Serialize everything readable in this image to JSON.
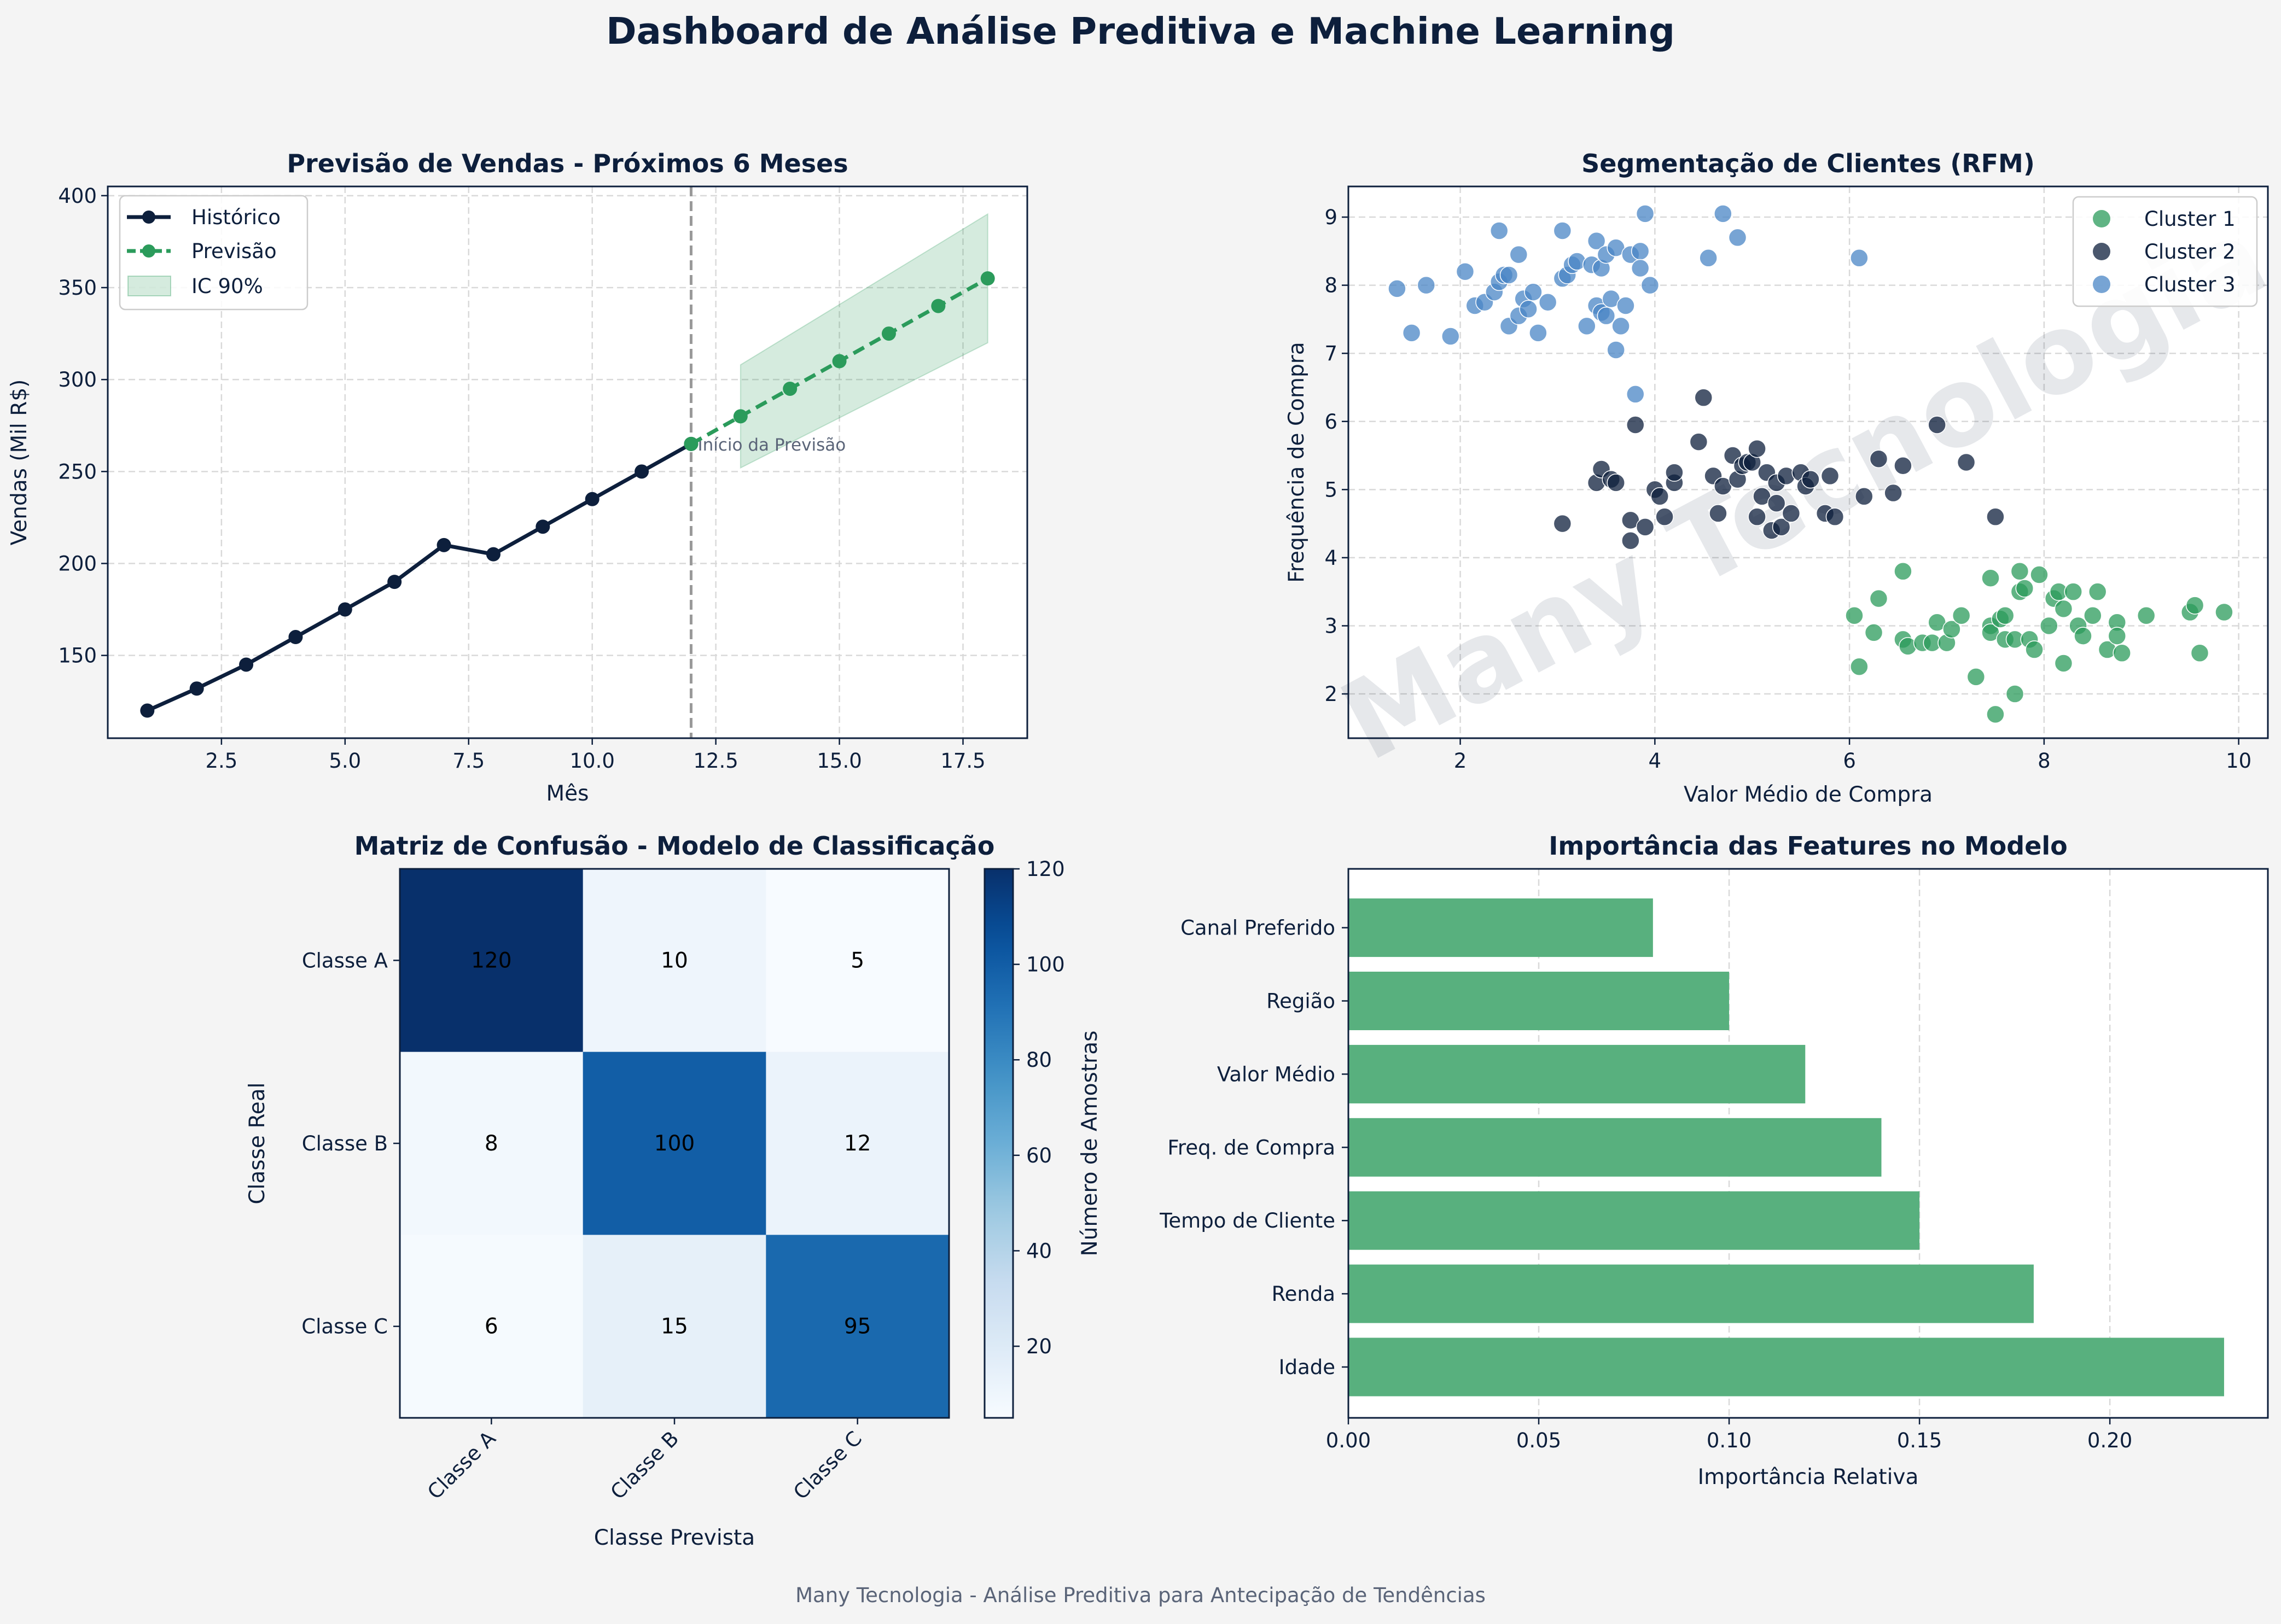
{
  "title": "Dashboard de Análise Preditiva e Machine Learning",
  "footer": "Many Tecnologia - Análise Preditiva para Antecipação de Tendências",
  "watermark": "Many Tecnologia",
  "colors": {
    "navy": "#0d1f3c",
    "green": "#2b9b5b",
    "blue": "#4a86c5",
    "bar_green": "#58b07e",
    "grid": "#d9d9d9"
  },
  "chart_data": [
    {
      "id": "forecast",
      "type": "line",
      "title": "Previsão de Vendas - Próximos 6 Meses",
      "xlabel": "Mês",
      "ylabel": "Vendas (Mil R$)",
      "xlim": [
        0.2,
        18.8
      ],
      "ylim": [
        105,
        405
      ],
      "xticks": [
        2.5,
        5.0,
        7.5,
        10.0,
        12.5,
        15.0,
        17.5
      ],
      "xtick_labels": [
        "2.5",
        "5.0",
        "7.5",
        "10.0",
        "12.5",
        "15.0",
        "17.5"
      ],
      "yticks": [
        150,
        200,
        250,
        300,
        350,
        400
      ],
      "ytick_labels": [
        "150",
        "200",
        "250",
        "300",
        "350",
        "400"
      ],
      "grid": true,
      "legend_position": "top-left",
      "series": [
        {
          "name": "Histórico",
          "style": "solid",
          "color": "#0d1f3c",
          "x": [
            1,
            2,
            3,
            4,
            5,
            6,
            7,
            8,
            9,
            10,
            11,
            12
          ],
          "y": [
            120,
            132,
            145,
            160,
            175,
            190,
            210,
            205,
            220,
            235,
            250,
            265
          ]
        },
        {
          "name": "Previsão",
          "style": "dashed",
          "color": "#2b9b5b",
          "x": [
            12,
            13,
            14,
            15,
            16,
            17,
            18
          ],
          "y": [
            265,
            280,
            295,
            310,
            325,
            340,
            355
          ]
        }
      ],
      "band": {
        "name": "IC 90%",
        "x": [
          13,
          18
        ],
        "lower": [
          252,
          320
        ],
        "upper": [
          308,
          390
        ]
      },
      "vline": {
        "x": 12,
        "label": "Início da Previsão"
      }
    },
    {
      "id": "rfm",
      "type": "scatter",
      "title": "Segmentação de Clientes (RFM)",
      "xlabel": "Valor Médio de Compra",
      "ylabel": "Frequência de Compra",
      "xlim": [
        0.85,
        10.3
      ],
      "ylim": [
        1.35,
        9.45
      ],
      "xticks": [
        2,
        4,
        6,
        8,
        10
      ],
      "xtick_labels": [
        "2",
        "4",
        "6",
        "8",
        "10"
      ],
      "yticks": [
        2,
        3,
        4,
        5,
        6,
        7,
        8,
        9
      ],
      "ytick_labels": [
        "2",
        "3",
        "4",
        "5",
        "6",
        "7",
        "8",
        "9"
      ],
      "grid": true,
      "legend_position": "top-right",
      "series": [
        {
          "name": "Cluster 1",
          "color": "#2b9b5b",
          "points": [
            [
              6.05,
              3.15
            ],
            [
              6.1,
              2.4
            ],
            [
              6.25,
              2.9
            ],
            [
              6.3,
              3.4
            ],
            [
              6.55,
              2.8
            ],
            [
              6.6,
              2.7
            ],
            [
              6.55,
              3.8
            ],
            [
              6.75,
              2.75
            ],
            [
              6.85,
              2.75
            ],
            [
              6.9,
              3.05
            ],
            [
              7.0,
              2.75
            ],
            [
              7.05,
              2.95
            ],
            [
              7.15,
              3.15
            ],
            [
              7.3,
              2.25
            ],
            [
              7.45,
              3.0
            ],
            [
              7.45,
              3.7
            ],
            [
              7.45,
              2.9
            ],
            [
              7.5,
              1.7
            ],
            [
              7.55,
              3.1
            ],
            [
              7.6,
              3.15
            ],
            [
              7.6,
              2.8
            ],
            [
              7.7,
              2.8
            ],
            [
              7.7,
              2.0
            ],
            [
              7.75,
              3.5
            ],
            [
              7.75,
              3.8
            ],
            [
              7.8,
              3.55
            ],
            [
              7.85,
              2.8
            ],
            [
              7.9,
              2.65
            ],
            [
              7.95,
              3.75
            ],
            [
              8.05,
              3.0
            ],
            [
              8.1,
              3.4
            ],
            [
              8.15,
              3.5
            ],
            [
              8.2,
              3.25
            ],
            [
              8.2,
              2.45
            ],
            [
              8.3,
              3.5
            ],
            [
              8.35,
              3.0
            ],
            [
              8.4,
              2.85
            ],
            [
              8.5,
              3.15
            ],
            [
              8.55,
              3.5
            ],
            [
              8.65,
              2.65
            ],
            [
              8.75,
              3.05
            ],
            [
              8.75,
              2.85
            ],
            [
              8.8,
              2.6
            ],
            [
              9.05,
              3.15
            ],
            [
              9.5,
              3.2
            ],
            [
              9.55,
              3.3
            ],
            [
              9.6,
              2.6
            ],
            [
              9.85,
              3.2
            ]
          ]
        },
        {
          "name": "Cluster 2",
          "color": "#0d1f3c",
          "points": [
            [
              3.05,
              4.5
            ],
            [
              3.4,
              5.1
            ],
            [
              3.45,
              5.3
            ],
            [
              3.55,
              5.15
            ],
            [
              3.6,
              5.1
            ],
            [
              3.75,
              4.55
            ],
            [
              3.75,
              4.25
            ],
            [
              3.8,
              5.95
            ],
            [
              3.9,
              4.45
            ],
            [
              4.0,
              5.0
            ],
            [
              4.05,
              4.9
            ],
            [
              4.1,
              4.6
            ],
            [
              4.2,
              5.1
            ],
            [
              4.2,
              5.25
            ],
            [
              4.45,
              5.7
            ],
            [
              4.5,
              6.35
            ],
            [
              4.6,
              5.2
            ],
            [
              4.65,
              4.65
            ],
            [
              4.7,
              5.05
            ],
            [
              4.8,
              5.5
            ],
            [
              4.85,
              5.15
            ],
            [
              4.9,
              5.35
            ],
            [
              4.95,
              5.4
            ],
            [
              5.0,
              5.4
            ],
            [
              5.05,
              5.6
            ],
            [
              5.05,
              4.6
            ],
            [
              5.1,
              4.9
            ],
            [
              5.15,
              5.25
            ],
            [
              5.2,
              4.4
            ],
            [
              5.25,
              4.8
            ],
            [
              5.25,
              5.1
            ],
            [
              5.3,
              4.45
            ],
            [
              5.35,
              5.2
            ],
            [
              5.4,
              4.65
            ],
            [
              5.5,
              5.25
            ],
            [
              5.55,
              5.05
            ],
            [
              5.6,
              5.15
            ],
            [
              5.75,
              4.65
            ],
            [
              5.8,
              5.2
            ],
            [
              5.85,
              4.6
            ],
            [
              6.15,
              4.9
            ],
            [
              6.3,
              5.45
            ],
            [
              6.45,
              4.95
            ],
            [
              6.55,
              5.35
            ],
            [
              6.9,
              5.95
            ],
            [
              7.2,
              5.4
            ],
            [
              7.5,
              4.6
            ]
          ]
        },
        {
          "name": "Cluster 3",
          "color": "#4a86c5",
          "points": [
            [
              1.35,
              7.95
            ],
            [
              1.5,
              7.3
            ],
            [
              1.65,
              8.0
            ],
            [
              1.9,
              7.25
            ],
            [
              2.05,
              8.2
            ],
            [
              2.15,
              7.7
            ],
            [
              2.25,
              7.75
            ],
            [
              2.35,
              7.9
            ],
            [
              2.4,
              8.05
            ],
            [
              2.4,
              8.8
            ],
            [
              2.45,
              8.15
            ],
            [
              2.5,
              8.15
            ],
            [
              2.5,
              7.4
            ],
            [
              2.6,
              8.45
            ],
            [
              2.6,
              7.55
            ],
            [
              2.65,
              7.8
            ],
            [
              2.7,
              7.65
            ],
            [
              2.75,
              7.9
            ],
            [
              2.8,
              7.3
            ],
            [
              2.9,
              7.75
            ],
            [
              3.05,
              8.1
            ],
            [
              3.05,
              8.8
            ],
            [
              3.1,
              8.15
            ],
            [
              3.15,
              8.3
            ],
            [
              3.2,
              8.35
            ],
            [
              3.3,
              7.4
            ],
            [
              3.35,
              8.3
            ],
            [
              3.4,
              8.65
            ],
            [
              3.4,
              7.7
            ],
            [
              3.45,
              7.6
            ],
            [
              3.45,
              8.25
            ],
            [
              3.5,
              8.45
            ],
            [
              3.5,
              7.55
            ],
            [
              3.55,
              7.8
            ],
            [
              3.6,
              7.05
            ],
            [
              3.6,
              8.55
            ],
            [
              3.65,
              7.4
            ],
            [
              3.7,
              7.7
            ],
            [
              3.75,
              8.45
            ],
            [
              3.8,
              6.4
            ],
            [
              3.85,
              8.5
            ],
            [
              3.85,
              8.25
            ],
            [
              3.9,
              9.05
            ],
            [
              3.95,
              8.0
            ],
            [
              4.55,
              8.4
            ],
            [
              4.7,
              9.05
            ],
            [
              4.85,
              8.7
            ],
            [
              6.1,
              8.4
            ]
          ]
        }
      ]
    },
    {
      "id": "confusion",
      "type": "heatmap",
      "title": "Matriz de Confusão - Modelo de Classificação",
      "xlabel": "Classe Prevista",
      "ylabel": "Classe Real",
      "x_categories": [
        "Classe A",
        "Classe B",
        "Classe C"
      ],
      "y_categories": [
        "Classe A",
        "Classe B",
        "Classe C"
      ],
      "values": [
        [
          120,
          10,
          5
        ],
        [
          8,
          100,
          12
        ],
        [
          6,
          15,
          95
        ]
      ],
      "colorbar_label": "Número de Amostras",
      "colorbar_ticks": [
        20,
        40,
        60,
        80,
        100,
        120
      ],
      "colorbar_tick_labels": [
        "20",
        "40",
        "60",
        "80",
        "100",
        "120"
      ],
      "vmin": 5,
      "vmax": 120,
      "colormap": "Blues"
    },
    {
      "id": "features",
      "type": "bar",
      "orientation": "horizontal",
      "title": "Importância das Features no Modelo",
      "xlabel": "Importância Relativa",
      "categories": [
        "Idade",
        "Renda",
        "Tempo de Cliente",
        "Freq. de Compra",
        "Valor Médio",
        "Região",
        "Canal Preferido"
      ],
      "values": [
        0.23,
        0.18,
        0.15,
        0.14,
        0.12,
        0.1,
        0.08
      ],
      "xlim": [
        0,
        0.2415
      ],
      "xticks": [
        0.0,
        0.05,
        0.1,
        0.15,
        0.2
      ],
      "xtick_labels": [
        "0.00",
        "0.05",
        "0.10",
        "0.15",
        "0.20"
      ],
      "grid": true,
      "color": "#58b07e"
    }
  ]
}
